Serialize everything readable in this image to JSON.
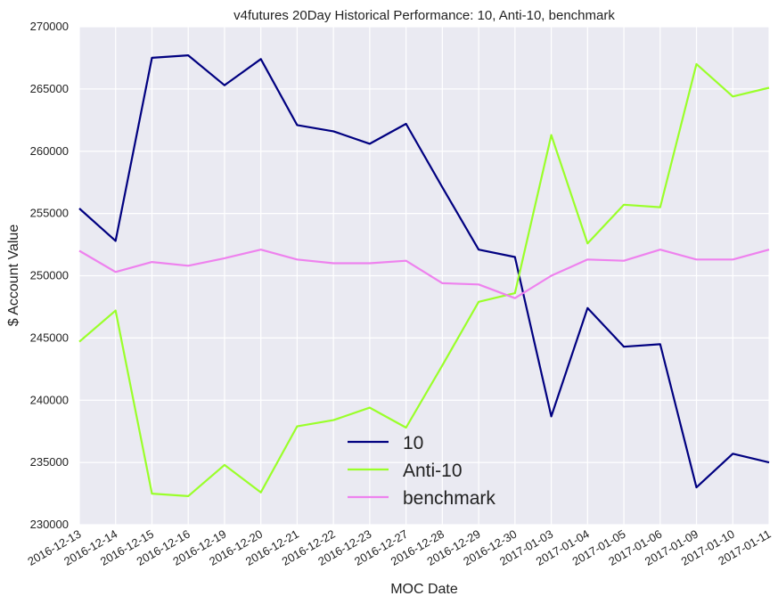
{
  "chart_data": {
    "type": "line",
    "title": "v4futures 20Day Historical Performance: 10, Anti-10, benchmark",
    "xlabel": "MOC Date",
    "ylabel": "$ Account Value",
    "ylim": [
      230000,
      270000
    ],
    "yticks": [
      230000,
      235000,
      240000,
      245000,
      250000,
      255000,
      260000,
      265000,
      270000
    ],
    "x": [
      "2016-12-13",
      "2016-12-14",
      "2016-12-15",
      "2016-12-16",
      "2016-12-19",
      "2016-12-20",
      "2016-12-21",
      "2016-12-22",
      "2016-12-23",
      "2016-12-27",
      "2016-12-28",
      "2016-12-29",
      "2016-12-30",
      "2017-01-03",
      "2017-01-04",
      "2017-01-05",
      "2017-01-06",
      "2017-01-09",
      "2017-01-10",
      "2017-01-11"
    ],
    "grid": true,
    "legend_position": "lower-center",
    "background": "#EAEAF2",
    "series": [
      {
        "name": "10",
        "color": "#000080",
        "values": [
          255400,
          252800,
          267500,
          267700,
          265300,
          267400,
          262100,
          261600,
          260600,
          262200,
          257100,
          252100,
          251500,
          238700,
          247400,
          244300,
          244500,
          233000,
          235700,
          235000
        ]
      },
      {
        "name": "Anti-10",
        "color": "#9AFF2A",
        "values": [
          244700,
          247200,
          232500,
          232300,
          234800,
          232600,
          237900,
          238400,
          239400,
          237800,
          242800,
          247900,
          248600,
          261300,
          252600,
          255700,
          255500,
          267000,
          264400,
          265100
        ]
      },
      {
        "name": "benchmark",
        "color": "#EE82EE",
        "values": [
          252000,
          250300,
          251100,
          250800,
          251400,
          252100,
          251300,
          251000,
          251000,
          251200,
          249400,
          249300,
          248200,
          250000,
          251300,
          251200,
          252100,
          251300,
          251300,
          252100
        ]
      }
    ]
  }
}
